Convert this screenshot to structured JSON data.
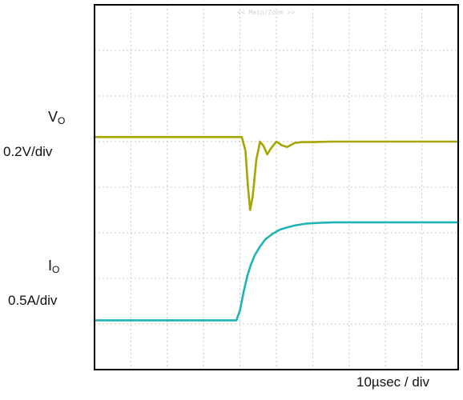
{
  "chart_data": {
    "type": "line",
    "title": "",
    "header_text": "<< Main/Zoom >>",
    "xlabel": "10µsec / div",
    "ylabel": "",
    "grid": true,
    "divisions": {
      "x": 10,
      "y": 8
    },
    "xlim": [
      0,
      100
    ],
    "x_unit": "µs",
    "series": [
      {
        "name": "",
        "label_symbol": "V",
        "label_subscript": "O",
        "scale_label": "0.2V/div",
        "color": "#a6a600",
        "y_unit": "div",
        "x": [
          0,
          10,
          20,
          30,
          38,
          40.5,
          41.5,
          42.2,
          42.8,
          43.5,
          44.5,
          45.5,
          46.5,
          47.5,
          48.5,
          50,
          51.5,
          53,
          55,
          57,
          60,
          65,
          70,
          80,
          90,
          100
        ],
        "y": [
          5.1,
          5.1,
          5.1,
          5.1,
          5.1,
          5.1,
          4.8,
          4.0,
          3.5,
          3.8,
          4.6,
          5.0,
          4.9,
          4.72,
          4.85,
          5.0,
          4.92,
          4.88,
          4.97,
          4.99,
          4.99,
          5.0,
          5.0,
          5.0,
          5.0,
          5.0
        ]
      },
      {
        "name": "",
        "label_symbol": "I",
        "label_subscript": "O",
        "scale_label": "0.5A/div",
        "color": "#1fb3b3",
        "y_unit": "div",
        "x": [
          0,
          10,
          20,
          30,
          39,
          40,
          41,
          42,
          43,
          44,
          45.5,
          47,
          49,
          51,
          53,
          55,
          58,
          62,
          66,
          70,
          80,
          90,
          100
        ],
        "y": [
          1.08,
          1.08,
          1.08,
          1.08,
          1.08,
          1.3,
          1.7,
          2.05,
          2.3,
          2.5,
          2.7,
          2.86,
          2.98,
          3.07,
          3.12,
          3.16,
          3.2,
          3.22,
          3.23,
          3.23,
          3.23,
          3.23,
          3.23
        ]
      }
    ]
  }
}
